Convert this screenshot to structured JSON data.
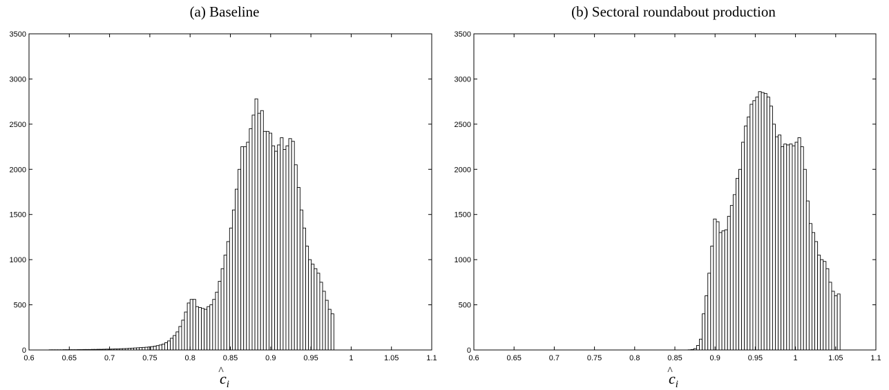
{
  "figure": {
    "panels": [
      "(a) Baseline",
      "(b) Sectoral roundabout production"
    ]
  },
  "chart_data": [
    {
      "type": "bar",
      "title": "(a) Baseline",
      "xlabel": "ĉ_i",
      "ylabel": "",
      "xlim": [
        0.6,
        1.1
      ],
      "ylim": [
        0,
        3500
      ],
      "xticks": [
        "0.6",
        "0.65",
        "0.7",
        "0.75",
        "0.8",
        "0.85",
        "0.9",
        "0.95",
        "1",
        "1.05",
        "1.1"
      ],
      "yticks": [
        "0",
        "500",
        "1000",
        "1500",
        "2000",
        "2500",
        "3000",
        "3500"
      ],
      "grid": false,
      "bin_start": 0.625,
      "bin_width": 0.0035,
      "values": [
        2,
        2,
        2,
        2,
        2,
        3,
        3,
        3,
        3,
        3,
        4,
        4,
        5,
        5,
        5,
        6,
        6,
        7,
        7,
        8,
        9,
        9,
        10,
        12,
        12,
        14,
        15,
        16,
        18,
        20,
        22,
        24,
        26,
        28,
        30,
        33,
        37,
        42,
        48,
        55,
        65,
        80,
        100,
        130,
        160,
        200,
        260,
        330,
        420,
        520,
        560,
        560,
        480,
        470,
        460,
        450,
        480,
        500,
        560,
        640,
        760,
        900,
        1050,
        1200,
        1350,
        1550,
        1780,
        2000,
        2250,
        2250,
        2300,
        2450,
        2600,
        2780,
        2620,
        2650,
        2420,
        2420,
        2400,
        2260,
        2200,
        2270,
        2350,
        2220,
        2260,
        2340,
        2310,
        2050,
        1800,
        1550,
        1350,
        1150,
        1000,
        950,
        900,
        850,
        750,
        650,
        550,
        450,
        400
      ]
    },
    {
      "type": "bar",
      "title": "(b) Sectoral roundabout production",
      "xlabel": "ĉ_i",
      "ylabel": "",
      "xlim": [
        0.6,
        1.1
      ],
      "ylim": [
        0,
        3500
      ],
      "xticks": [
        "0.6",
        "0.65",
        "0.7",
        "0.75",
        "0.8",
        "0.85",
        "0.9",
        "0.95",
        "1",
        "1.05",
        "1.1"
      ],
      "yticks": [
        "0",
        "500",
        "1000",
        "1500",
        "2000",
        "2500",
        "3000",
        "3500"
      ],
      "grid": false,
      "bin_start": 0.8665,
      "bin_width": 0.0035,
      "values": [
        2,
        5,
        15,
        50,
        120,
        400,
        600,
        850,
        1150,
        1450,
        1420,
        1300,
        1320,
        1330,
        1480,
        1600,
        1720,
        1900,
        2000,
        2300,
        2480,
        2580,
        2720,
        2760,
        2800,
        2860,
        2850,
        2840,
        2800,
        2700,
        2500,
        2360,
        2380,
        2250,
        2280,
        2270,
        2280,
        2260,
        2300,
        2350,
        2250,
        2000,
        1650,
        1400,
        1300,
        1200,
        1050,
        1000,
        980,
        900,
        750,
        650,
        600,
        620
      ]
    }
  ]
}
